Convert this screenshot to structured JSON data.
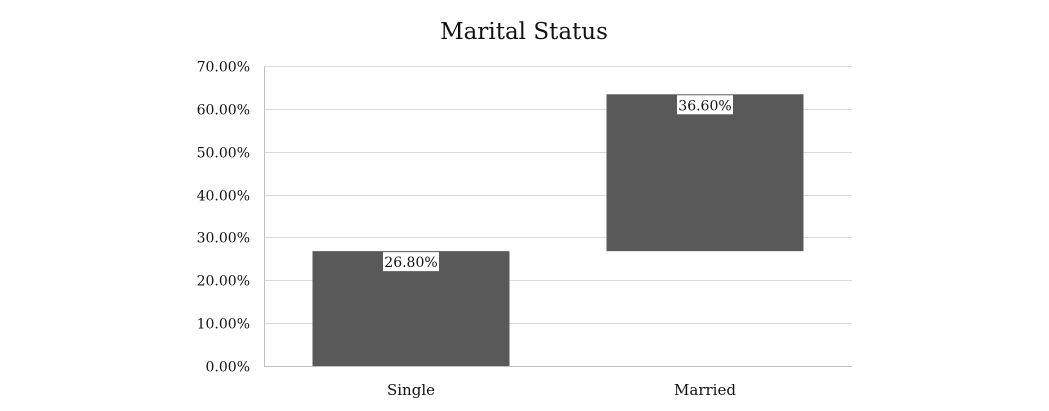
{
  "chart_data": {
    "type": "bar",
    "subtype": "floating-waterfall",
    "title": "Marital Status",
    "categories": [
      "Single",
      "Married"
    ],
    "values": [
      26.8,
      36.6
    ],
    "bar_ranges": [
      [
        0,
        26.8
      ],
      [
        26.8,
        63.4
      ]
    ],
    "data_labels": [
      "26.80%",
      "36.60%"
    ],
    "ylim": [
      0,
      70
    ],
    "y_ticks": [
      0,
      10,
      20,
      30,
      40,
      50,
      60,
      70
    ],
    "y_tick_labels": [
      "0.00%",
      "10.00%",
      "20.00%",
      "30.00%",
      "40.00%",
      "50.00%",
      "60.00%",
      "70.00%"
    ],
    "xlabel": "",
    "ylabel": "",
    "grid": true,
    "legend": "none",
    "colors": {
      "bar": "#595959",
      "grid": "#d9d9d9",
      "axis": "#bfbfbf",
      "label_bg": "#ffffff",
      "text": "#111111"
    }
  }
}
